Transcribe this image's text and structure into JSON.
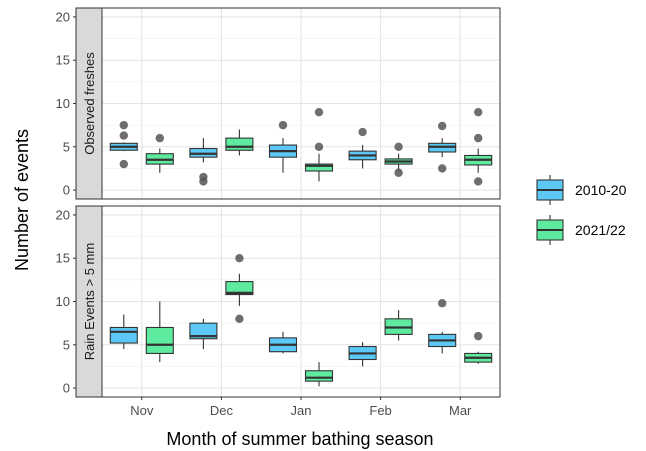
{
  "chart_data": {
    "type": "boxplot",
    "xlabel": "Month of summer bathing season",
    "ylabel": "Number of events",
    "categories": [
      "Nov",
      "Dec",
      "Jan",
      "Feb",
      "Mar"
    ],
    "ylim": [
      0,
      20
    ],
    "yticks": [
      0,
      5,
      10,
      15,
      20
    ],
    "grid": true,
    "legend_position": "right",
    "series": [
      {
        "name": "2010-20",
        "color": "#5BC8F5"
      },
      {
        "name": "2021/22",
        "color": "#5EEBA0"
      }
    ],
    "panels": [
      {
        "label": "Observed freshes",
        "boxes": [
          {
            "category": "Nov",
            "series": "2010-20",
            "min": 4.5,
            "q1": 4.6,
            "median": 5.0,
            "q3": 5.4,
            "max": 5.5,
            "outliers": [
              7.5,
              6.3,
              3.0
            ]
          },
          {
            "category": "Nov",
            "series": "2021/22",
            "min": 2.0,
            "q1": 3.0,
            "median": 3.5,
            "q3": 4.2,
            "max": 4.8,
            "outliers": [
              6.0
            ]
          },
          {
            "category": "Dec",
            "series": "2010-20",
            "min": 3.2,
            "q1": 3.8,
            "median": 4.2,
            "q3": 4.8,
            "max": 6.0,
            "outliers": [
              1.5,
              1.0
            ]
          },
          {
            "category": "Dec",
            "series": "2021/22",
            "min": 4.0,
            "q1": 4.6,
            "median": 5.0,
            "q3": 6.0,
            "max": 7.0,
            "outliers": []
          },
          {
            "category": "Jan",
            "series": "2010-20",
            "min": 2.0,
            "q1": 3.8,
            "median": 4.5,
            "q3": 5.2,
            "max": 6.0,
            "outliers": [
              7.5
            ]
          },
          {
            "category": "Jan",
            "series": "2021/22",
            "min": 1.0,
            "q1": 2.2,
            "median": 2.8,
            "q3": 3.0,
            "max": 4.2,
            "outliers": [
              9.0,
              5.0
            ]
          },
          {
            "category": "Feb",
            "series": "2010-20",
            "min": 2.5,
            "q1": 3.5,
            "median": 4.0,
            "q3": 4.5,
            "max": 5.2,
            "outliers": [
              6.7
            ]
          },
          {
            "category": "Feb",
            "series": "2021/22",
            "min": 2.2,
            "q1": 3.0,
            "median": 3.3,
            "q3": 3.6,
            "max": 4.2,
            "outliers": [
              5.0,
              2.0
            ]
          },
          {
            "category": "Mar",
            "series": "2010-20",
            "min": 3.8,
            "q1": 4.4,
            "median": 5.0,
            "q3": 5.4,
            "max": 6.0,
            "outliers": [
              7.4,
              2.5
            ]
          },
          {
            "category": "Mar",
            "series": "2021/22",
            "min": 2.0,
            "q1": 2.9,
            "median": 3.5,
            "q3": 4.0,
            "max": 4.8,
            "outliers": [
              9.0,
              6.0,
              1.0
            ]
          }
        ]
      },
      {
        "label": "Rain Events > 5 mm",
        "boxes": [
          {
            "category": "Nov",
            "series": "2010-20",
            "min": 4.5,
            "q1": 5.2,
            "median": 6.5,
            "q3": 7.0,
            "max": 8.5,
            "outliers": []
          },
          {
            "category": "Nov",
            "series": "2021/22",
            "min": 3.0,
            "q1": 4.0,
            "median": 5.0,
            "q3": 7.0,
            "max": 10.0,
            "outliers": []
          },
          {
            "category": "Dec",
            "series": "2010-20",
            "min": 4.5,
            "q1": 5.7,
            "median": 6.0,
            "q3": 7.5,
            "max": 8.0,
            "outliers": []
          },
          {
            "category": "Dec",
            "series": "2021/22",
            "min": 9.5,
            "q1": 10.8,
            "median": 11.0,
            "q3": 12.3,
            "max": 13.2,
            "outliers": [
              15.0,
              8.0
            ]
          },
          {
            "category": "Jan",
            "series": "2010-20",
            "min": 4.0,
            "q1": 4.2,
            "median": 5.0,
            "q3": 5.8,
            "max": 6.5,
            "outliers": []
          },
          {
            "category": "Jan",
            "series": "2021/22",
            "min": 0.2,
            "q1": 0.8,
            "median": 1.2,
            "q3": 2.0,
            "max": 3.0,
            "outliers": []
          },
          {
            "category": "Feb",
            "series": "2010-20",
            "min": 2.5,
            "q1": 3.3,
            "median": 4.0,
            "q3": 4.8,
            "max": 5.3,
            "outliers": []
          },
          {
            "category": "Feb",
            "series": "2021/22",
            "min": 5.5,
            "q1": 6.2,
            "median": 7.0,
            "q3": 8.0,
            "max": 9.0,
            "outliers": []
          },
          {
            "category": "Mar",
            "series": "2010-20",
            "min": 4.0,
            "q1": 4.8,
            "median": 5.5,
            "q3": 6.2,
            "max": 6.5,
            "outliers": [
              9.8
            ]
          },
          {
            "category": "Mar",
            "series": "2021/22",
            "min": 2.8,
            "q1": 3.0,
            "median": 3.5,
            "q3": 4.0,
            "max": 4.2,
            "outliers": [
              6.0
            ]
          }
        ]
      }
    ]
  }
}
